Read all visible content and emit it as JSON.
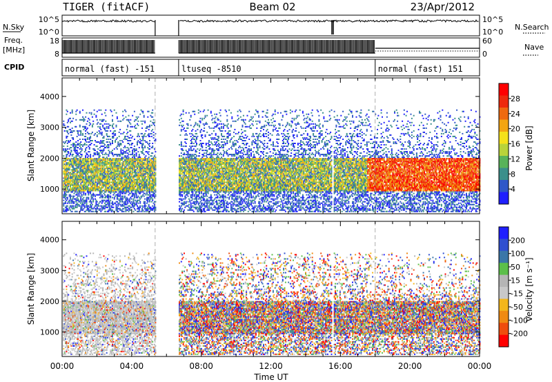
{
  "header": {
    "radar": "TIGER (fitACF)",
    "beam": "Beam 02",
    "date": "23/Apr/2012"
  },
  "top_panels": {
    "nsky_label": "N.Sky",
    "nsearch_label": "N.Search",
    "nsky_ticks": [
      "10^5",
      "10^0"
    ],
    "nsearch_ticks": [
      "10^5",
      "10^0"
    ],
    "freq_label": "Freq.",
    "freq_unit": "[MHz]",
    "freq_ticks": [
      "18",
      "8"
    ],
    "nave_label": "Nave",
    "nave_ticks": [
      "60",
      "0"
    ],
    "cpid_label": "CPID",
    "cpid_segments": [
      {
        "label": "normal (fast) -151",
        "start_hour": 0.0,
        "end_hour": 5.35
      },
      {
        "label": "ltuseq -8510",
        "start_hour": 6.7,
        "end_hour": 18.0
      },
      {
        "label": "normal (fast) 151",
        "start_hour": 18.0,
        "end_hour": 24.0
      }
    ]
  },
  "colors": {
    "power_scale": [
      "#1f1fff",
      "#2f57c8",
      "#3b8f8b",
      "#58b35a",
      "#b9d33a",
      "#f5e11a",
      "#f3a512",
      "#ef6a0f",
      "#ee2a0c",
      "#ff0000"
    ],
    "velocity_scale": [
      "#1f1fff",
      "#2f4fd0",
      "#3a76a8",
      "#5cbf4a",
      "#b5b5b5",
      "#c8c8c8",
      "#f3b61b",
      "#f08a12",
      "#ef4d0d",
      "#ff0000"
    ]
  },
  "chart_data": [
    {
      "type": "heatmap",
      "name": "power",
      "title": "",
      "xlabel": "Time UT",
      "ylabel": "Slant Range [km]",
      "xlim": [
        0,
        24
      ],
      "ylim": [
        200,
        4600
      ],
      "x_ticks": [
        "00:00",
        "04:00",
        "08:00",
        "12:00",
        "16:00",
        "20:00",
        "00:00"
      ],
      "y_ticks": [
        "1000",
        "2000",
        "3000",
        "4000"
      ],
      "colorbar_label": "Power [dB]",
      "colorbar_ticks": [
        "4",
        "8",
        "12",
        "16",
        "20",
        "24",
        "28"
      ],
      "data_gaps_hours": [
        [
          5.35,
          6.7
        ],
        [
          15.5,
          15.6
        ]
      ],
      "main_echo_band_km": [
        900,
        2000
      ]
    },
    {
      "type": "heatmap",
      "name": "velocity",
      "title": "",
      "xlabel": "Time UT",
      "ylabel": "Slant Range [km]",
      "xlim": [
        0,
        24
      ],
      "ylim": [
        200,
        4600
      ],
      "x_ticks": [
        "00:00",
        "04:00",
        "08:00",
        "12:00",
        "16:00",
        "20:00",
        "00:00"
      ],
      "y_ticks": [
        "1000",
        "2000",
        "3000",
        "4000"
      ],
      "colorbar_label": "Velocity [m s⁻¹]",
      "colorbar_ticks": [
        "200",
        "100",
        "50",
        "15",
        "-15",
        "-50",
        "-100",
        "-200"
      ],
      "data_gaps_hours": [
        [
          5.35,
          6.7
        ],
        [
          15.5,
          15.6
        ]
      ],
      "main_echo_band_km": [
        900,
        2000
      ]
    }
  ]
}
